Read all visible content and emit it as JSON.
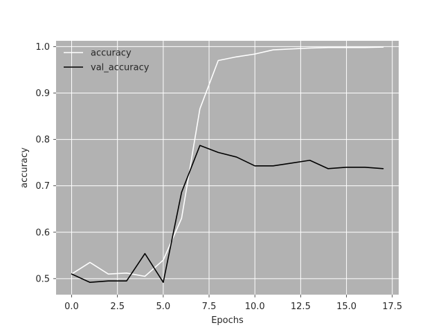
{
  "chart_data": {
    "type": "line",
    "title": "",
    "xlabel": "Epochs",
    "ylabel": "accuracy",
    "xlim": [
      -0.85,
      17.85
    ],
    "ylim": [
      0.4655,
      1.0125
    ],
    "grid": true,
    "legend_position": "top-left",
    "background_color": "#b2b2b2",
    "grid_color": "#ffffff",
    "x_ticks": [
      0.0,
      2.5,
      5.0,
      7.5,
      10.0,
      12.5,
      15.0,
      17.5
    ],
    "x_tick_labels": [
      "0.0",
      "2.5",
      "5.0",
      "7.5",
      "10.0",
      "12.5",
      "15.0",
      "17.5"
    ],
    "y_ticks": [
      0.5,
      0.6,
      0.7,
      0.8,
      0.9,
      1.0
    ],
    "y_tick_labels": [
      "0.5",
      "0.6",
      "0.7",
      "0.8",
      "0.9",
      "1.0"
    ],
    "x": [
      0,
      1,
      2,
      3,
      4,
      5,
      6,
      7,
      8,
      9,
      10,
      11,
      12,
      13,
      14,
      15,
      16,
      17
    ],
    "series": [
      {
        "name": "accuracy",
        "color": "#ffffff",
        "values": [
          0.51,
          0.535,
          0.51,
          0.512,
          0.505,
          0.54,
          0.63,
          0.866,
          0.97,
          0.978,
          0.984,
          0.993,
          0.995,
          0.997,
          0.998,
          0.998,
          0.998,
          0.999
        ]
      },
      {
        "name": "val_accuracy",
        "color": "#000000",
        "values": [
          0.51,
          0.492,
          0.495,
          0.495,
          0.554,
          0.492,
          0.686,
          0.787,
          0.772,
          0.762,
          0.743,
          0.743,
          0.749,
          0.755,
          0.737,
          0.74,
          0.74,
          0.737
        ]
      }
    ]
  }
}
